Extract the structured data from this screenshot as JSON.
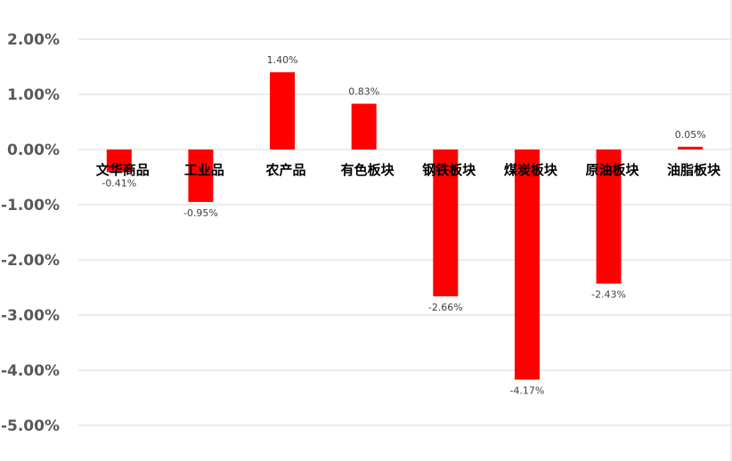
{
  "chart_data": {
    "type": "bar",
    "categories": [
      "文华商品",
      "工业品",
      "农产品",
      "有色板块",
      "钢铁板块",
      "煤炭板块",
      "原油板块",
      "油脂板块"
    ],
    "values": [
      -0.41,
      -0.95,
      1.4,
      0.83,
      -2.66,
      -4.17,
      -2.43,
      0.05
    ],
    "data_labels": [
      "-0.41%",
      "-0.95%",
      "1.40%",
      "0.83%",
      "-2.66%",
      "-4.17%",
      "-2.43%",
      "0.05%"
    ],
    "yticks": [
      2,
      1,
      0,
      -1,
      -2,
      -3,
      -4,
      -5
    ],
    "ytick_labels": [
      "2.00%",
      "1.00%",
      "0.00%",
      "-1.00%",
      "-2.00%",
      "-3.00%",
      "-4.00%",
      "-5.00%"
    ],
    "ylim": [
      -5,
      2
    ],
    "grid": true,
    "bar_color": "#ff0000",
    "grid_color": "#d9d9d9",
    "legend": "none"
  }
}
